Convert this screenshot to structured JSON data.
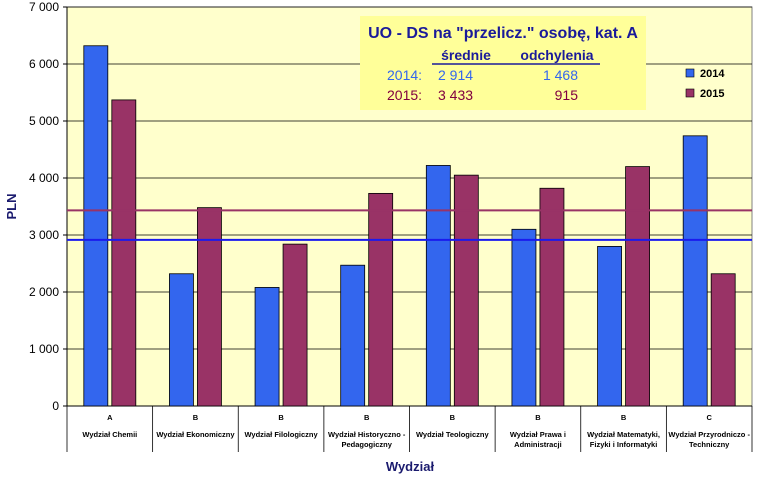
{
  "chart_data": {
    "type": "bar",
    "ylabel": "PLN",
    "xlabel": "Wydział",
    "ylim": [
      0,
      7000
    ],
    "yticks": [
      0,
      1000,
      2000,
      3000,
      4000,
      5000,
      6000,
      7000
    ],
    "ytick_labels": [
      "0",
      "1 000",
      "2 000",
      "3 000",
      "4 000",
      "5 000",
      "6 000",
      "7 000"
    ],
    "grid": true,
    "legend_position": "right",
    "categories": [
      {
        "group": "A",
        "lines": [
          "Wydział Chemii"
        ]
      },
      {
        "group": "B",
        "lines": [
          "Wydział Ekonomiczny"
        ]
      },
      {
        "group": "B",
        "lines": [
          "Wydział Filologiczny"
        ]
      },
      {
        "group": "B",
        "lines": [
          "Wydział Historyczno -",
          "Pedagogiczny"
        ]
      },
      {
        "group": "B",
        "lines": [
          "Wydział Teologiczny"
        ]
      },
      {
        "group": "B",
        "lines": [
          "Wydział Prawa i",
          "Administracji"
        ]
      },
      {
        "group": "B",
        "lines": [
          "Wydział Matematyki,",
          "Fizyki i Informatyki"
        ]
      },
      {
        "group": "C",
        "lines": [
          "Wydział Przyrodniczo -",
          "Techniczny"
        ]
      }
    ],
    "series": [
      {
        "name": "2014",
        "color": "#3366ee",
        "values": [
          6320,
          2320,
          2080,
          2470,
          4220,
          3100,
          2800,
          4740
        ]
      },
      {
        "name": "2015",
        "color": "#993366",
        "values": [
          5370,
          3480,
          2840,
          3730,
          4050,
          3820,
          4200,
          2320
        ]
      }
    ],
    "reference_lines": [
      {
        "series": "2014",
        "value": 2914,
        "color": "#1a1aee"
      },
      {
        "series": "2015",
        "value": 3433,
        "color": "#993366"
      }
    ],
    "annotation": {
      "title": "UO - DS na \"przelicz.\" osobę, kat. A",
      "header_mean": "średnie",
      "header_dev": "odchylenia",
      "rows": [
        {
          "label": "2014:",
          "mean": "2 914",
          "dev": "1 468",
          "color": "#3366ee"
        },
        {
          "label": "2015:",
          "mean": "3 433",
          "dev": "915",
          "color": "#800040"
        }
      ]
    },
    "colors": {
      "plot_background": "#ffffcc",
      "grid": "#000000"
    }
  }
}
